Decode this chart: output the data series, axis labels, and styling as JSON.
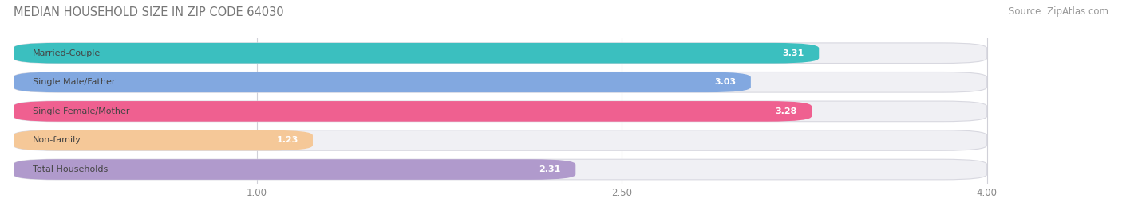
{
  "title": "MEDIAN HOUSEHOLD SIZE IN ZIP CODE 64030",
  "source": "Source: ZipAtlas.com",
  "categories": [
    "Married-Couple",
    "Single Male/Father",
    "Single Female/Mother",
    "Non-family",
    "Total Households"
  ],
  "values": [
    3.31,
    3.03,
    3.28,
    1.23,
    2.31
  ],
  "bar_colors": [
    "#3bbfbf",
    "#82a8e0",
    "#ef6090",
    "#f5c898",
    "#b09acc"
  ],
  "xlim_min": 0.0,
  "xlim_max": 4.5,
  "xdata_min": 0.0,
  "xdata_max": 4.0,
  "xticks": [
    1.0,
    2.5,
    4.0
  ],
  "xtick_labels": [
    "1.00",
    "2.50",
    "4.00"
  ],
  "background_color": "#ffffff",
  "bar_bg_color": "#f0f0f4",
  "bar_bg_edge": "#d8d8e0",
  "row_gap_color": "#ffffff",
  "title_fontsize": 10.5,
  "source_fontsize": 8.5,
  "label_fontsize": 8.0,
  "value_fontsize": 8.0,
  "bar_height": 0.7,
  "title_color": "#777777",
  "source_color": "#999999",
  "label_color": "#444444",
  "value_color": "#ffffff",
  "grid_color": "#d0d0d8",
  "tick_color": "#888888"
}
